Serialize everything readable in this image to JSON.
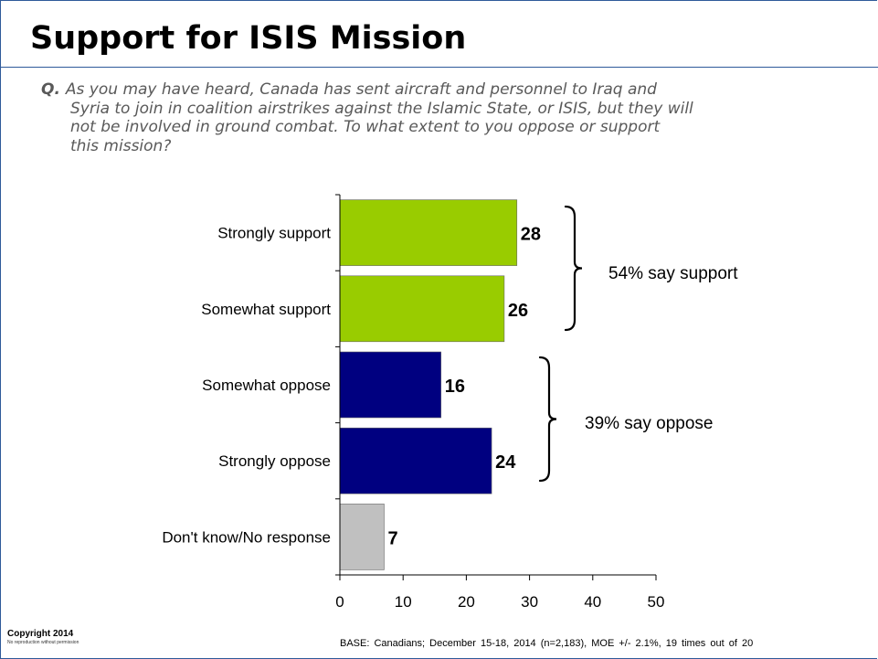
{
  "title": "Support for ISIS Mission",
  "question": {
    "label": "Q.",
    "lines": [
      "As you may have heard, Canada has sent aircraft and personnel to Iraq and",
      "Syria to join in coalition airstrikes against the Islamic State, or ISIS, but they will",
      "not be involved in ground combat. To what extent to you oppose or support",
      "this mission?"
    ]
  },
  "chart_data": {
    "type": "bar",
    "orientation": "horizontal",
    "categories": [
      "Strongly support",
      "Somewhat support",
      "Somewhat oppose",
      "Strongly oppose",
      "Don't know/No response"
    ],
    "values": [
      28,
      26,
      16,
      24,
      7
    ],
    "data_labels": [
      "28",
      "26",
      "16",
      "24",
      "7"
    ],
    "bar_colors": [
      "#99cc00",
      "#99cc00",
      "#000080",
      "#000080",
      "#c0c0c0"
    ],
    "xlim": [
      0,
      50
    ],
    "x_ticks": [
      "0",
      "10",
      "20",
      "30",
      "40",
      "50"
    ],
    "grid": false,
    "groups": [
      {
        "label": "54% say support",
        "categories": [
          "Strongly support",
          "Somewhat support"
        ]
      },
      {
        "label": "39% say oppose",
        "categories": [
          "Somewhat oppose",
          "Strongly oppose"
        ]
      }
    ]
  },
  "footer": {
    "copyright": "Copyright 2014",
    "copyright_note": "No reproduction without permission",
    "base": "BASE: Canadians; December 15-18, 2014 (n=2,183), MOE +/- 2.1%, 19 times out of 20"
  }
}
